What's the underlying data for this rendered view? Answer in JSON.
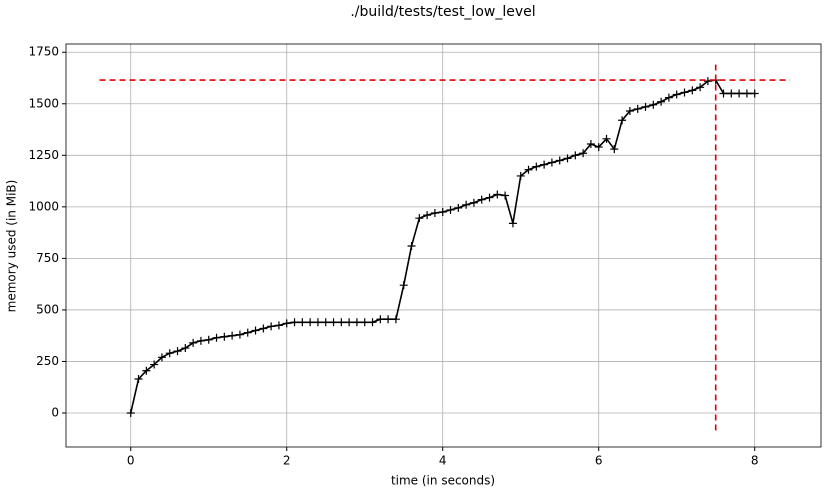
{
  "chart_data": {
    "type": "line",
    "title": "./build/tests/test_low_level",
    "x_label": "time (in seconds)",
    "y_label": "memory used (in MiB)",
    "x": [
      0,
      0.1,
      0.2,
      0.3,
      0.4,
      0.5,
      0.6,
      0.7,
      0.8,
      0.9,
      1.0,
      1.1,
      1.2,
      1.3,
      1.4,
      1.5,
      1.6,
      1.7,
      1.8,
      1.9,
      2.0,
      2.1,
      2.2,
      2.3,
      2.4,
      2.5,
      2.6,
      2.7,
      2.8,
      2.9,
      3.0,
      3.1,
      3.2,
      3.3,
      3.4,
      3.5,
      3.6,
      3.7,
      3.8,
      3.9,
      4.0,
      4.1,
      4.2,
      4.3,
      4.4,
      4.5,
      4.6,
      4.7,
      4.8,
      4.9,
      5.0,
      5.1,
      5.2,
      5.3,
      5.4,
      5.5,
      5.6,
      5.7,
      5.8,
      5.9,
      6.0,
      6.1,
      6.2,
      6.3,
      6.4,
      6.5,
      6.6,
      6.7,
      6.8,
      6.9,
      7.0,
      7.1,
      7.2,
      7.3,
      7.4,
      7.5,
      7.6,
      7.7,
      7.8,
      7.9,
      8.0
    ],
    "series": [
      {
        "color": "#000000",
        "marker": "+",
        "values": [
          0,
          165,
          205,
          235,
          270,
          290,
          300,
          315,
          340,
          350,
          355,
          365,
          370,
          375,
          380,
          390,
          400,
          410,
          420,
          425,
          435,
          440,
          440,
          440,
          440,
          440,
          440,
          440,
          440,
          440,
          440,
          440,
          455,
          455,
          455,
          620,
          810,
          945,
          960,
          970,
          975,
          985,
          995,
          1010,
          1020,
          1035,
          1045,
          1060,
          1055,
          920,
          1150,
          1180,
          1195,
          1205,
          1215,
          1225,
          1235,
          1250,
          1260,
          1305,
          1290,
          1330,
          1280,
          1420,
          1465,
          1475,
          1485,
          1495,
          1510,
          1530,
          1545,
          1555,
          1565,
          1580,
          1610,
          1615,
          1550,
          1550,
          1550,
          1550,
          1550
        ]
      }
    ],
    "peak": {
      "x": 7.5,
      "y": 1615,
      "color": "#e00000",
      "xspan": [
        -0.4,
        8.45
      ],
      "yspan": [
        -85,
        1690
      ]
    },
    "xlim": [
      -0.83,
      8.85
    ],
    "ylim": [
      -165,
      1790
    ],
    "xticks": [
      0,
      2,
      4,
      6,
      8
    ],
    "yticks": [
      0,
      250,
      500,
      750,
      1000,
      1250,
      1500,
      1750
    ],
    "grid": true
  }
}
